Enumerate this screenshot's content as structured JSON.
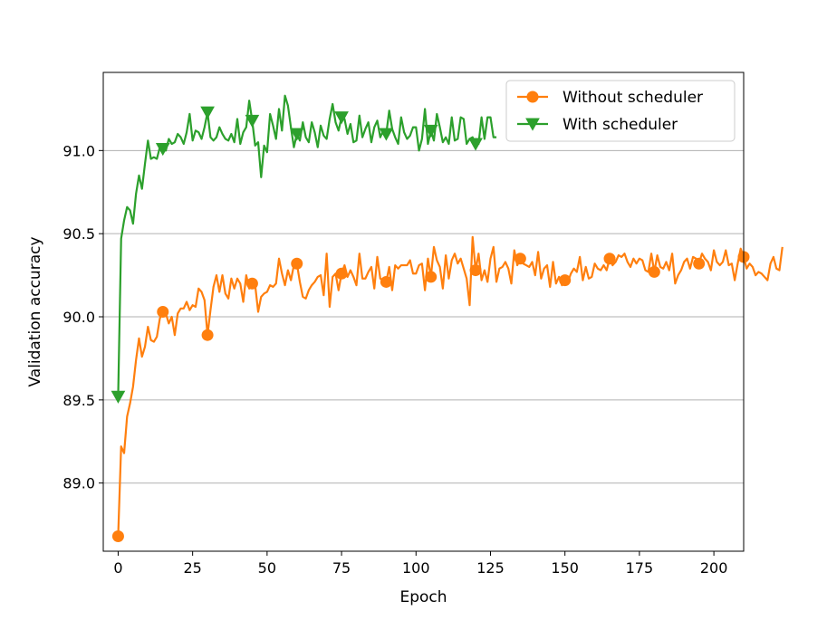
{
  "chart_data": {
    "type": "line",
    "title": "",
    "xlabel": "Epoch",
    "ylabel": "Validation accuracy",
    "xlim": [
      -5,
      210
    ],
    "ylim": [
      88.59,
      91.47
    ],
    "xticks": [
      0,
      25,
      50,
      75,
      100,
      125,
      150,
      175,
      200
    ],
    "xtick_labels": [
      "0",
      "25",
      "50",
      "75",
      "100",
      "125",
      "150",
      "175",
      "200"
    ],
    "yticks": [
      89.0,
      89.5,
      90.0,
      90.5,
      91.0
    ],
    "ytick_labels": [
      "89.0",
      "89.5",
      "90.0",
      "90.5",
      "91.0"
    ],
    "grid": "horizontal",
    "legend_position": "top-right",
    "series": [
      {
        "name": "Without scheduler",
        "color": "#ff7f0e",
        "marker": "circle",
        "marker_every": 15,
        "x_start": 0,
        "values": [
          88.68,
          89.22,
          89.18,
          89.4,
          89.48,
          89.58,
          89.74,
          89.87,
          89.76,
          89.82,
          89.94,
          89.86,
          89.85,
          89.88,
          89.99,
          90.03,
          90.02,
          89.96,
          90.0,
          89.89,
          90.02,
          90.05,
          90.05,
          90.09,
          90.04,
          90.07,
          90.06,
          90.17,
          90.15,
          90.1,
          89.89,
          90.04,
          90.18,
          90.25,
          90.15,
          90.25,
          90.14,
          90.11,
          90.23,
          90.17,
          90.23,
          90.2,
          90.09,
          90.25,
          90.17,
          90.2,
          90.19,
          90.03,
          90.12,
          90.14,
          90.15,
          90.19,
          90.18,
          90.2,
          90.35,
          90.26,
          90.19,
          90.28,
          90.22,
          90.31,
          90.32,
          90.21,
          90.12,
          90.11,
          90.16,
          90.19,
          90.21,
          90.24,
          90.25,
          90.13,
          90.38,
          90.06,
          90.24,
          90.26,
          90.16,
          90.26,
          90.31,
          90.24,
          90.28,
          90.24,
          90.19,
          90.38,
          90.23,
          90.23,
          90.27,
          90.3,
          90.17,
          90.36,
          90.23,
          90.22,
          90.21,
          90.3,
          90.16,
          90.31,
          90.29,
          90.31,
          90.31,
          90.31,
          90.34,
          90.26,
          90.26,
          90.31,
          90.32,
          90.16,
          90.35,
          90.24,
          90.42,
          90.34,
          90.3,
          90.17,
          90.37,
          90.23,
          90.34,
          90.38,
          90.32,
          90.35,
          90.29,
          90.23,
          90.07,
          90.48,
          90.28,
          90.38,
          90.22,
          90.28,
          90.21,
          90.35,
          90.42,
          90.21,
          90.29,
          90.3,
          90.33,
          90.29,
          90.2,
          90.4,
          90.31,
          90.35,
          90.32,
          90.31,
          90.3,
          90.33,
          90.25,
          90.39,
          90.23,
          90.29,
          90.31,
          90.18,
          90.33,
          90.2,
          90.24,
          90.19,
          90.22,
          90.21,
          90.26,
          90.29,
          90.27,
          90.36,
          90.22,
          90.3,
          90.23,
          90.24,
          90.32,
          90.29,
          90.28,
          90.31,
          90.28,
          90.35,
          90.31,
          90.33,
          90.37,
          90.36,
          90.38,
          90.33,
          90.3,
          90.35,
          90.32,
          90.35,
          90.34,
          90.28,
          90.27,
          90.38,
          90.27,
          90.37,
          90.3,
          90.29,
          90.33,
          90.28,
          90.38,
          90.2,
          90.25,
          90.28,
          90.33,
          90.35,
          90.29,
          90.36,
          90.35,
          90.32,
          90.38,
          90.35,
          90.33,
          90.28,
          90.4,
          90.33,
          90.31,
          90.33,
          90.4,
          90.31,
          90.32,
          90.22,
          90.32,
          90.41,
          90.36,
          90.29,
          90.32,
          90.3,
          90.25,
          90.27,
          90.26,
          90.24,
          90.22,
          90.32,
          90.36,
          90.29,
          90.28,
          90.42
        ]
      },
      {
        "name": "With scheduler",
        "color": "#2ca02c",
        "marker": "triangle-down",
        "marker_every": 15,
        "x_start": 0,
        "values": [
          89.52,
          90.47,
          90.58,
          90.66,
          90.64,
          90.56,
          90.74,
          90.85,
          90.77,
          90.92,
          91.06,
          90.95,
          90.96,
          90.95,
          91.02,
          91.01,
          91.0,
          91.07,
          91.04,
          91.05,
          91.1,
          91.08,
          91.04,
          91.11,
          91.22,
          91.06,
          91.12,
          91.11,
          91.07,
          91.14,
          91.23,
          91.08,
          91.06,
          91.08,
          91.14,
          91.1,
          91.07,
          91.06,
          91.1,
          91.05,
          91.19,
          91.04,
          91.11,
          91.14,
          91.3,
          91.18,
          91.03,
          91.05,
          90.84,
          91.03,
          90.99,
          91.22,
          91.15,
          91.07,
          91.25,
          91.12,
          91.33,
          91.27,
          91.14,
          91.02,
          91.1,
          91.06,
          91.17,
          91.08,
          91.05,
          91.17,
          91.11,
          91.02,
          91.15,
          91.09,
          91.07,
          91.19,
          91.28,
          91.17,
          91.12,
          91.2,
          91.19,
          91.1,
          91.16,
          91.05,
          91.06,
          91.21,
          91.08,
          91.13,
          91.17,
          91.05,
          91.14,
          91.18,
          91.08,
          91.12,
          91.1,
          91.24,
          91.13,
          91.08,
          91.04,
          91.2,
          91.11,
          91.07,
          91.09,
          91.14,
          91.14,
          91.0,
          91.07,
          91.25,
          91.04,
          91.12,
          91.06,
          91.22,
          91.14,
          91.05,
          91.08,
          91.04,
          91.2,
          91.06,
          91.07,
          91.2,
          91.19,
          91.04,
          91.07,
          91.08,
          91.04,
          91.04,
          91.2,
          91.07,
          91.2,
          91.2,
          91.08,
          91.08
        ]
      }
    ]
  }
}
